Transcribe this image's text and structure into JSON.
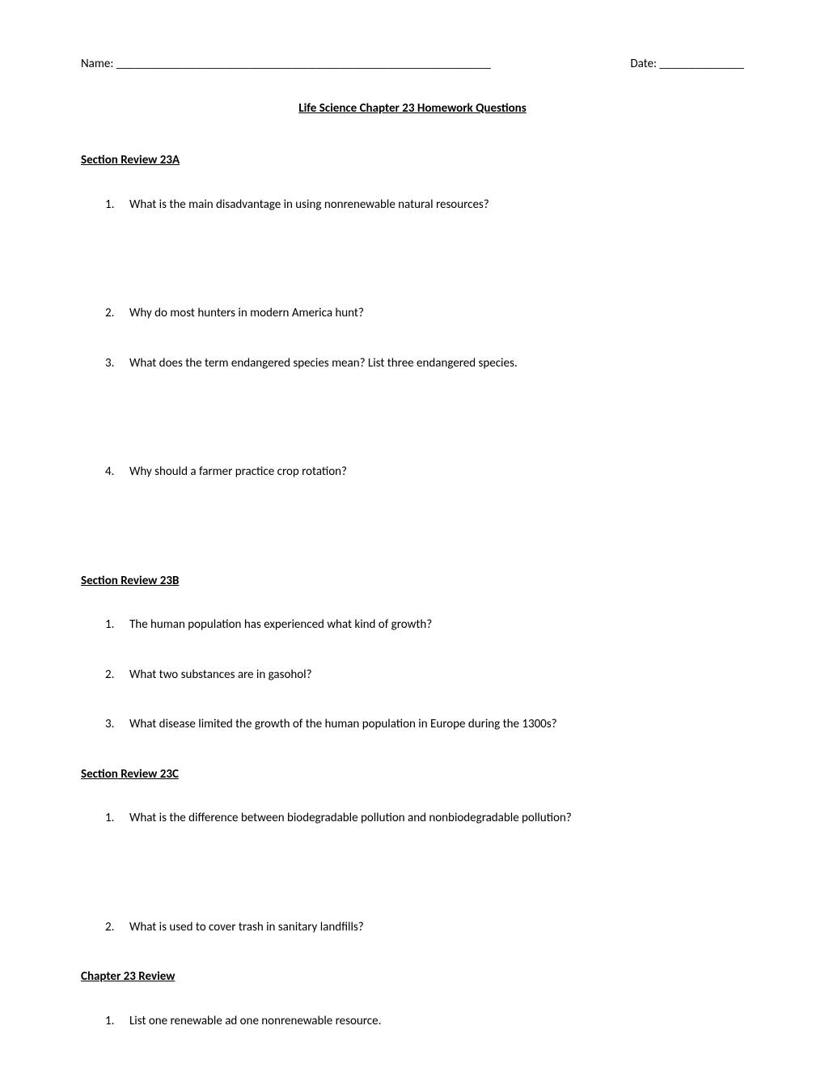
{
  "header": {
    "name_label": "Name: ______________________________________________________________",
    "date_label": "Date: ______________"
  },
  "title": "Life Science Chapter 23 Homework Questions",
  "sections": [
    {
      "heading": "Section Review 23A",
      "questions": [
        "What is the main disadvantage in using nonrenewable natural resources?",
        "Why do most hunters in modern America hunt?",
        "What does the term endangered species mean?   List three endangered species.",
        "Why should a farmer practice crop rotation?"
      ]
    },
    {
      "heading": "Section Review 23B",
      "questions": [
        "The human population has experienced what kind of growth?",
        "What two substances are in gasohol?",
        "What disease limited the growth of the human population in Europe during the 1300s?"
      ]
    },
    {
      "heading": "Section Review 23C",
      "questions": [
        "What is the difference between biodegradable pollution and nonbiodegradable pollution?",
        "What is used to cover trash in sanitary landfills?"
      ]
    },
    {
      "heading": "Chapter 23 Review",
      "questions": [
        "List one renewable ad one nonrenewable resource."
      ]
    }
  ]
}
